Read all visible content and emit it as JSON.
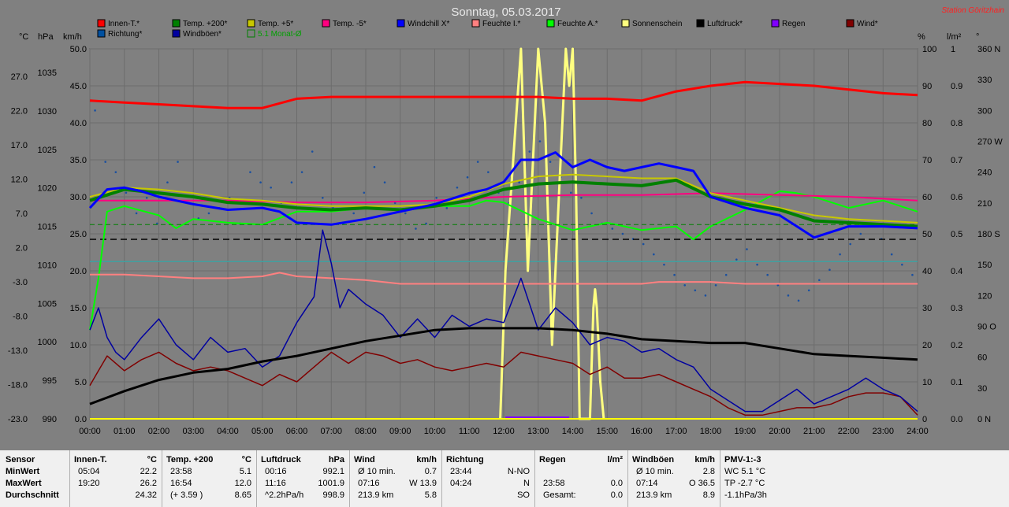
{
  "chart_data": {
    "type": "line",
    "title": "Sonntag, 05.03.2017",
    "station": "Station Göritzhain",
    "legend": [
      {
        "label": "Innen-T.*",
        "color": "#ff0000"
      },
      {
        "label": "Temp. +200*",
        "color": "#008000"
      },
      {
        "label": "Temp. +5*",
        "color": "#c8c800"
      },
      {
        "label": "Temp. -5*",
        "color": "#ff0080"
      },
      {
        "label": "Windchill X*",
        "color": "#0000ff"
      },
      {
        "label": "Feuchte I.*",
        "color": "#ff8080"
      },
      {
        "label": "Feuchte A.*",
        "color": "#00ff00"
      },
      {
        "label": "Sonnenschein",
        "color": "#ffff80"
      },
      {
        "label": "Luftdruck*",
        "color": "#000000"
      },
      {
        "label": "Regen",
        "color": "#8000ff"
      },
      {
        "label": "Wind*",
        "color": "#800000"
      },
      {
        "label": "Richtung*",
        "color": "#0050a0"
      },
      {
        "label": "Windböen*",
        "color": "#0000a0"
      },
      {
        "label": "5.1 Monat-Ø",
        "color": "#008000"
      }
    ],
    "axis_units": {
      "temp": "°C",
      "pressure": "hPa",
      "wind": "km/h",
      "pct": "%",
      "rain": "l/m²",
      "dir": "°"
    },
    "x_ticks": [
      "00:00",
      "01:00",
      "02:00",
      "03:00",
      "04:00",
      "05:00",
      "06:00",
      "07:00",
      "08:00",
      "09:00",
      "10:00",
      "11:00",
      "12:00",
      "13:00",
      "14:00",
      "15:00",
      "16:00",
      "17:00",
      "18:00",
      "19:00",
      "20:00",
      "21:00",
      "22:00",
      "23:00",
      "24:00"
    ],
    "ticks_temp": [
      "27.0",
      "22.0",
      "17.0",
      "12.0",
      "7.0",
      "2.0",
      "-3.0",
      "-8.0",
      "-13.0",
      "-18.0",
      "-23.0"
    ],
    "ticks_pressure": [
      "1035",
      "1030",
      "1025",
      "1020",
      "1015",
      "1010",
      "1005",
      "1000",
      "995",
      "990"
    ],
    "ticks_wind": [
      "50.0",
      "45.0",
      "40.0",
      "35.0",
      "30.0",
      "25.0",
      "20.0",
      "15.0",
      "10.0",
      "5.0",
      "0.0"
    ],
    "ticks_pct": [
      "100",
      "90",
      "80",
      "70",
      "60",
      "50",
      "40",
      "30",
      "20",
      "10",
      "0"
    ],
    "ticks_rain": [
      "1",
      "0.9",
      "0.8",
      "0.7",
      "0.6",
      "0.5",
      "0.4",
      "0.3",
      "0.2",
      "0.1",
      "0.0"
    ],
    "ticks_dir": [
      "360 N",
      "330",
      "300",
      "270 W",
      "240",
      "210",
      "180 S",
      "150",
      "120",
      "90 O",
      "60",
      "30",
      "0 N"
    ],
    "ylim_pct": [
      0,
      100
    ],
    "series": [
      {
        "name": "Innen-T.*",
        "axis": "pct",
        "color": "#ff0000",
        "width": 3,
        "x": [
          0,
          1,
          2,
          3,
          4,
          5,
          6,
          7,
          8,
          9,
          10,
          11,
          12,
          13,
          14,
          15,
          16,
          17,
          18,
          19,
          20,
          21,
          22,
          23,
          24
        ],
        "y": [
          86,
          85.5,
          85,
          84.5,
          84,
          84,
          86.5,
          87,
          87,
          87,
          87,
          87,
          87,
          87,
          86.5,
          86.5,
          86,
          88.5,
          90,
          91,
          90.5,
          90,
          89,
          88,
          87.5
        ]
      },
      {
        "name": "Temp. +200*",
        "axis": "pct",
        "color": "#008000",
        "width": 4,
        "x": [
          0,
          1,
          2,
          3,
          4,
          5,
          6,
          7,
          8,
          9,
          10,
          11,
          12,
          13,
          14,
          15,
          16,
          17,
          18,
          19,
          20,
          21,
          22,
          23,
          24
        ],
        "y": [
          59,
          62,
          61,
          60,
          58.5,
          58,
          57,
          56.5,
          57,
          56.5,
          57.5,
          59,
          62,
          63.5,
          64,
          63.5,
          63,
          64.5,
          60,
          58,
          56.5,
          53.5,
          53,
          52.5,
          52
        ]
      },
      {
        "name": "Temp. +5*",
        "axis": "pct",
        "color": "#c8c800",
        "width": 2,
        "x": [
          0,
          1,
          2,
          3,
          4,
          5,
          6,
          7,
          8,
          9,
          10,
          11,
          12,
          13,
          14,
          15,
          16,
          17,
          18,
          19,
          20,
          21,
          22,
          23,
          24
        ],
        "y": [
          60,
          62.5,
          62,
          61,
          59.5,
          59,
          58,
          57.5,
          57.5,
          57.5,
          58,
          60,
          63.5,
          65.5,
          66,
          65.5,
          65,
          65,
          61,
          59,
          57,
          55,
          54,
          53.5,
          53
        ]
      },
      {
        "name": "Temp. -5*",
        "axis": "pct",
        "color": "#ff0080",
        "width": 2,
        "x": [
          0,
          2,
          4,
          6,
          8,
          10,
          12,
          14,
          16,
          18,
          20,
          22,
          24
        ],
        "y": [
          59,
          59,
          59,
          58.5,
          58.5,
          59,
          60,
          60.5,
          60.5,
          61,
          60.5,
          60,
          59
        ]
      },
      {
        "name": "Windchill X*",
        "axis": "pct",
        "color": "#0000ff",
        "width": 3,
        "x": [
          0,
          0.5,
          1,
          1.5,
          2,
          3,
          4,
          5,
          5.5,
          6,
          7,
          8,
          9,
          10,
          11,
          11.5,
          12,
          12.5,
          13,
          13.5,
          14,
          14.5,
          15,
          15.5,
          16,
          16.5,
          17,
          17.5,
          18,
          19,
          20,
          21,
          22,
          23,
          24
        ],
        "y": [
          57,
          62,
          62.5,
          61.5,
          60,
          58,
          56.5,
          57,
          56,
          53,
          52.5,
          54,
          56,
          58,
          61,
          62,
          64,
          70,
          70,
          72,
          68,
          70,
          68,
          67,
          68,
          69,
          68,
          67,
          60,
          57,
          55,
          49,
          52,
          52,
          51.5
        ]
      },
      {
        "name": "Feuchte I.*",
        "axis": "pct",
        "color": "#ff8080",
        "width": 2,
        "x": [
          0,
          1,
          2,
          3,
          4,
          5,
          5.5,
          6,
          7,
          8,
          9,
          10,
          11,
          12,
          13,
          14,
          15,
          16,
          16.5,
          17,
          18,
          19,
          20,
          21,
          22,
          23,
          24
        ],
        "y": [
          39,
          39,
          38.5,
          38,
          38,
          38.5,
          39.5,
          38.5,
          38,
          37.5,
          36.5,
          36.5,
          36.5,
          36.5,
          36.5,
          36.5,
          36.5,
          36.5,
          37,
          37,
          37,
          36.5,
          36.5,
          36.5,
          36.5,
          36.5,
          36.5
        ]
      },
      {
        "name": "Feuchte A.*",
        "axis": "pct",
        "color": "#00ff00",
        "width": 2,
        "x": [
          0,
          0.25,
          0.5,
          1,
          2,
          2.5,
          3,
          4,
          5,
          6,
          7,
          8,
          9,
          10,
          11,
          11.5,
          12,
          13,
          14,
          15,
          16,
          17,
          17.5,
          18,
          19,
          20,
          20.5,
          21,
          22,
          23,
          24
        ],
        "y": [
          24,
          38,
          56,
          57.5,
          55,
          51.5,
          54,
          53,
          52.5,
          56,
          56,
          57,
          56.5,
          57.5,
          57.5,
          59,
          58.5,
          54,
          51,
          53,
          51,
          52,
          48.5,
          52,
          56.5,
          61.5,
          61,
          60,
          57,
          59,
          56
        ]
      },
      {
        "name": "Luftdruck*",
        "axis": "pct",
        "color": "#000000",
        "width": 3,
        "x": [
          0,
          1,
          2,
          3,
          4,
          5,
          6,
          7,
          8,
          9,
          10,
          11,
          12,
          13,
          14,
          15,
          16,
          17,
          18,
          19,
          20,
          21,
          22,
          23,
          24
        ],
        "y": [
          4,
          7.5,
          10.5,
          12.5,
          13.5,
          15.5,
          17,
          19,
          21,
          22.5,
          24,
          24.5,
          24.5,
          24.5,
          24,
          23,
          21.5,
          21,
          20.5,
          20.5,
          19,
          17.5,
          17,
          16.5,
          16
        ]
      },
      {
        "name": "Wind*",
        "axis": "pct",
        "color": "#800000",
        "width": 1.5,
        "x": [
          0,
          0.25,
          0.5,
          1,
          1.5,
          2,
          2.5,
          3,
          3.5,
          4,
          4.5,
          5,
          5.5,
          6,
          6.5,
          7,
          7.5,
          8,
          8.5,
          9,
          9.5,
          10,
          10.5,
          11,
          11.5,
          12,
          12.5,
          13,
          13.5,
          14,
          14.5,
          15,
          15.5,
          16,
          16.5,
          17,
          17.5,
          18,
          18.5,
          19,
          19.5,
          20,
          20.5,
          21,
          21.5,
          22,
          22.5,
          23,
          23.5,
          24
        ],
        "y": [
          9,
          13,
          17,
          13,
          16,
          18,
          15,
          13,
          14,
          13,
          11,
          9,
          12,
          10,
          14,
          18,
          15,
          18,
          17,
          15,
          16,
          14,
          13,
          14,
          15,
          14,
          18,
          17,
          16,
          15,
          12,
          14,
          11,
          11,
          12,
          10,
          8,
          6,
          3,
          1,
          1,
          2,
          3,
          3,
          4,
          6,
          7,
          7,
          6,
          1
        ]
      },
      {
        "name": "Windböen*",
        "axis": "pct",
        "color": "#0000a0",
        "width": 1.5,
        "x": [
          0,
          0.25,
          0.5,
          0.75,
          1,
          1.5,
          2,
          2.5,
          3,
          3.5,
          4,
          4.5,
          5,
          5.5,
          6,
          6.5,
          6.75,
          7,
          7.25,
          7.5,
          8,
          8.5,
          9,
          9.5,
          10,
          10.5,
          11,
          11.5,
          12,
          12.5,
          13,
          13.5,
          14,
          14.5,
          15,
          15.5,
          16,
          16.5,
          17,
          17.5,
          18,
          18.5,
          19,
          19.5,
          20,
          20.5,
          21,
          21.5,
          22,
          22.5,
          23,
          23.5,
          24
        ],
        "y": [
          24,
          30,
          22,
          18,
          16,
          22,
          27,
          20,
          16,
          22,
          18,
          19,
          14,
          17,
          26,
          33,
          51,
          42,
          30,
          35,
          31,
          28,
          22,
          27,
          22,
          28,
          25,
          27,
          26,
          38,
          24,
          30,
          26,
          20,
          22,
          21,
          18,
          19,
          16,
          14,
          8,
          5,
          2,
          2,
          5,
          8,
          4,
          6,
          8,
          11,
          8,
          6,
          2
        ]
      },
      {
        "name": "Sonnenschein",
        "axis": "pct",
        "color": "#ffff80",
        "width": 3,
        "x": [
          11.9,
          12.05,
          12.2,
          12.35,
          12.5,
          12.6,
          12.7,
          12.8,
          13.0,
          13.2,
          13.4,
          13.6,
          13.8,
          13.9,
          14.0,
          14.1,
          14.2,
          14.5,
          14.6,
          14.65,
          14.7,
          14.8,
          14.9
        ],
        "y": [
          0,
          40,
          60,
          80,
          100,
          70,
          40,
          60,
          100,
          80,
          20,
          60,
          100,
          90,
          100,
          60,
          0,
          0,
          30,
          35,
          30,
          10,
          0
        ]
      },
      {
        "name": "5.1 Monat-Ø",
        "axis": "pct",
        "color": "#008000",
        "width": 1,
        "dash": true,
        "x": [
          0,
          24
        ],
        "y": [
          52.5,
          52.5
        ]
      }
    ],
    "reference_lines": [
      {
        "axis": "pct",
        "y": 48.5,
        "color": "#000000",
        "dash": true
      },
      {
        "axis": "pct",
        "y": 42.5,
        "color": "#40a0a0",
        "dash": false
      }
    ],
    "wind_direction_dots_deg": [
      300,
      250,
      240,
      220,
      200,
      215,
      190,
      230,
      250,
      210,
      195,
      200,
      205,
      215,
      190,
      240,
      230,
      225,
      210,
      230,
      240,
      260,
      215,
      205,
      190,
      200,
      220,
      245,
      230,
      210,
      200,
      185,
      190,
      215,
      205,
      225,
      235,
      250,
      240,
      220,
      210,
      230,
      260,
      270,
      250,
      235,
      220,
      215,
      200,
      190,
      185,
      180,
      175,
      170,
      160,
      150,
      140,
      130,
      125,
      120,
      130,
      140,
      155,
      165,
      150,
      140,
      130,
      120,
      115,
      125,
      135,
      145,
      160,
      170,
      180,
      190,
      175,
      160,
      150,
      140
    ]
  },
  "table": {
    "row_labels": [
      "Sensor",
      "MinWert",
      "MaxWert",
      "Durchschnitt"
    ],
    "columns": [
      {
        "title": "Innen-T.",
        "unit": "°C",
        "rows": [
          [
            "05:04",
            "22.2"
          ],
          [
            "19:20",
            "26.2"
          ],
          [
            "",
            "24.32"
          ]
        ]
      },
      {
        "title": "Temp. +200",
        "unit": "°C",
        "rows": [
          [
            "23:58",
            "5.1"
          ],
          [
            "16:54",
            "12.0"
          ],
          [
            "(+ 3.59 )",
            "8.65"
          ]
        ]
      },
      {
        "title": "Luftdruck",
        "unit": "hPa",
        "rows": [
          [
            "00:16",
            "992.1"
          ],
          [
            "11:16",
            "1001.9"
          ],
          [
            "^2.2hPa/h",
            "998.9"
          ]
        ]
      },
      {
        "title": "Wind",
        "unit": "km/h",
        "rows": [
          [
            "Ø 10 min.",
            "0.7"
          ],
          [
            "07:16",
            "W 13.9"
          ],
          [
            "213.9 km",
            "5.8"
          ]
        ]
      },
      {
        "title": "Richtung",
        "unit": "",
        "rows": [
          [
            "23:44",
            "N-NO"
          ],
          [
            "04:24",
            "N"
          ],
          [
            "",
            "SO"
          ]
        ]
      },
      {
        "title": "Regen",
        "unit": "l/m²",
        "rows": [
          [
            "",
            ""
          ],
          [
            "23:58",
            "0.0"
          ],
          [
            "Gesamt:",
            "0.0"
          ]
        ]
      },
      {
        "title": "Windböen",
        "unit": "km/h",
        "rows": [
          [
            "Ø 10 min.",
            "2.8"
          ],
          [
            "07:14",
            "O 36.5"
          ],
          [
            "213.9 km",
            "8.9"
          ]
        ]
      },
      {
        "title": "PMV-1:-3",
        "unit": "",
        "rows": [
          [
            "WC 5.1 °C",
            ""
          ],
          [
            "TP -2.7 °C",
            ""
          ],
          [
            "-1.1hPa/3h",
            ""
          ]
        ]
      }
    ]
  }
}
